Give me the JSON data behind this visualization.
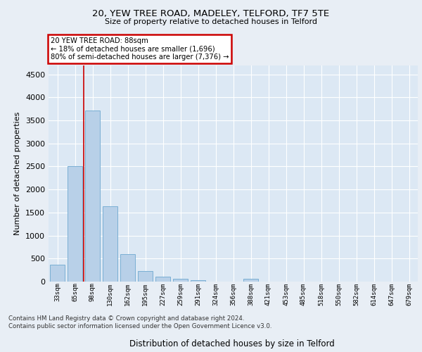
{
  "title1": "20, YEW TREE ROAD, MADELEY, TELFORD, TF7 5TE",
  "title2": "Size of property relative to detached houses in Telford",
  "xlabel": "Distribution of detached houses by size in Telford",
  "ylabel": "Number of detached properties",
  "categories": [
    "33sqm",
    "65sqm",
    "98sqm",
    "130sqm",
    "162sqm",
    "195sqm",
    "227sqm",
    "259sqm",
    "291sqm",
    "324sqm",
    "356sqm",
    "388sqm",
    "421sqm",
    "453sqm",
    "485sqm",
    "518sqm",
    "550sqm",
    "582sqm",
    "614sqm",
    "647sqm",
    "679sqm"
  ],
  "values": [
    370,
    2500,
    3720,
    1630,
    590,
    225,
    105,
    60,
    38,
    0,
    0,
    60,
    0,
    0,
    0,
    0,
    0,
    0,
    0,
    0,
    0
  ],
  "bar_color": "#b8d0e8",
  "bar_edge_color": "#7aafd4",
  "ylim": [
    0,
    4700
  ],
  "yticks": [
    0,
    500,
    1000,
    1500,
    2000,
    2500,
    3000,
    3500,
    4000,
    4500
  ],
  "annotation_text": "20 YEW TREE ROAD: 88sqm\n← 18% of detached houses are smaller (1,696)\n80% of semi-detached houses are larger (7,376) →",
  "footer_text": "Contains HM Land Registry data © Crown copyright and database right 2024.\nContains public sector information licensed under the Open Government Licence v3.0.",
  "fig_bg_color": "#e8eef5",
  "plot_bg_color": "#dce8f4",
  "grid_color": "#ffffff",
  "vline_x": 1.5,
  "vline_color": "#cc0000",
  "annot_box_color": "white",
  "annot_edge_color": "#cc0000"
}
